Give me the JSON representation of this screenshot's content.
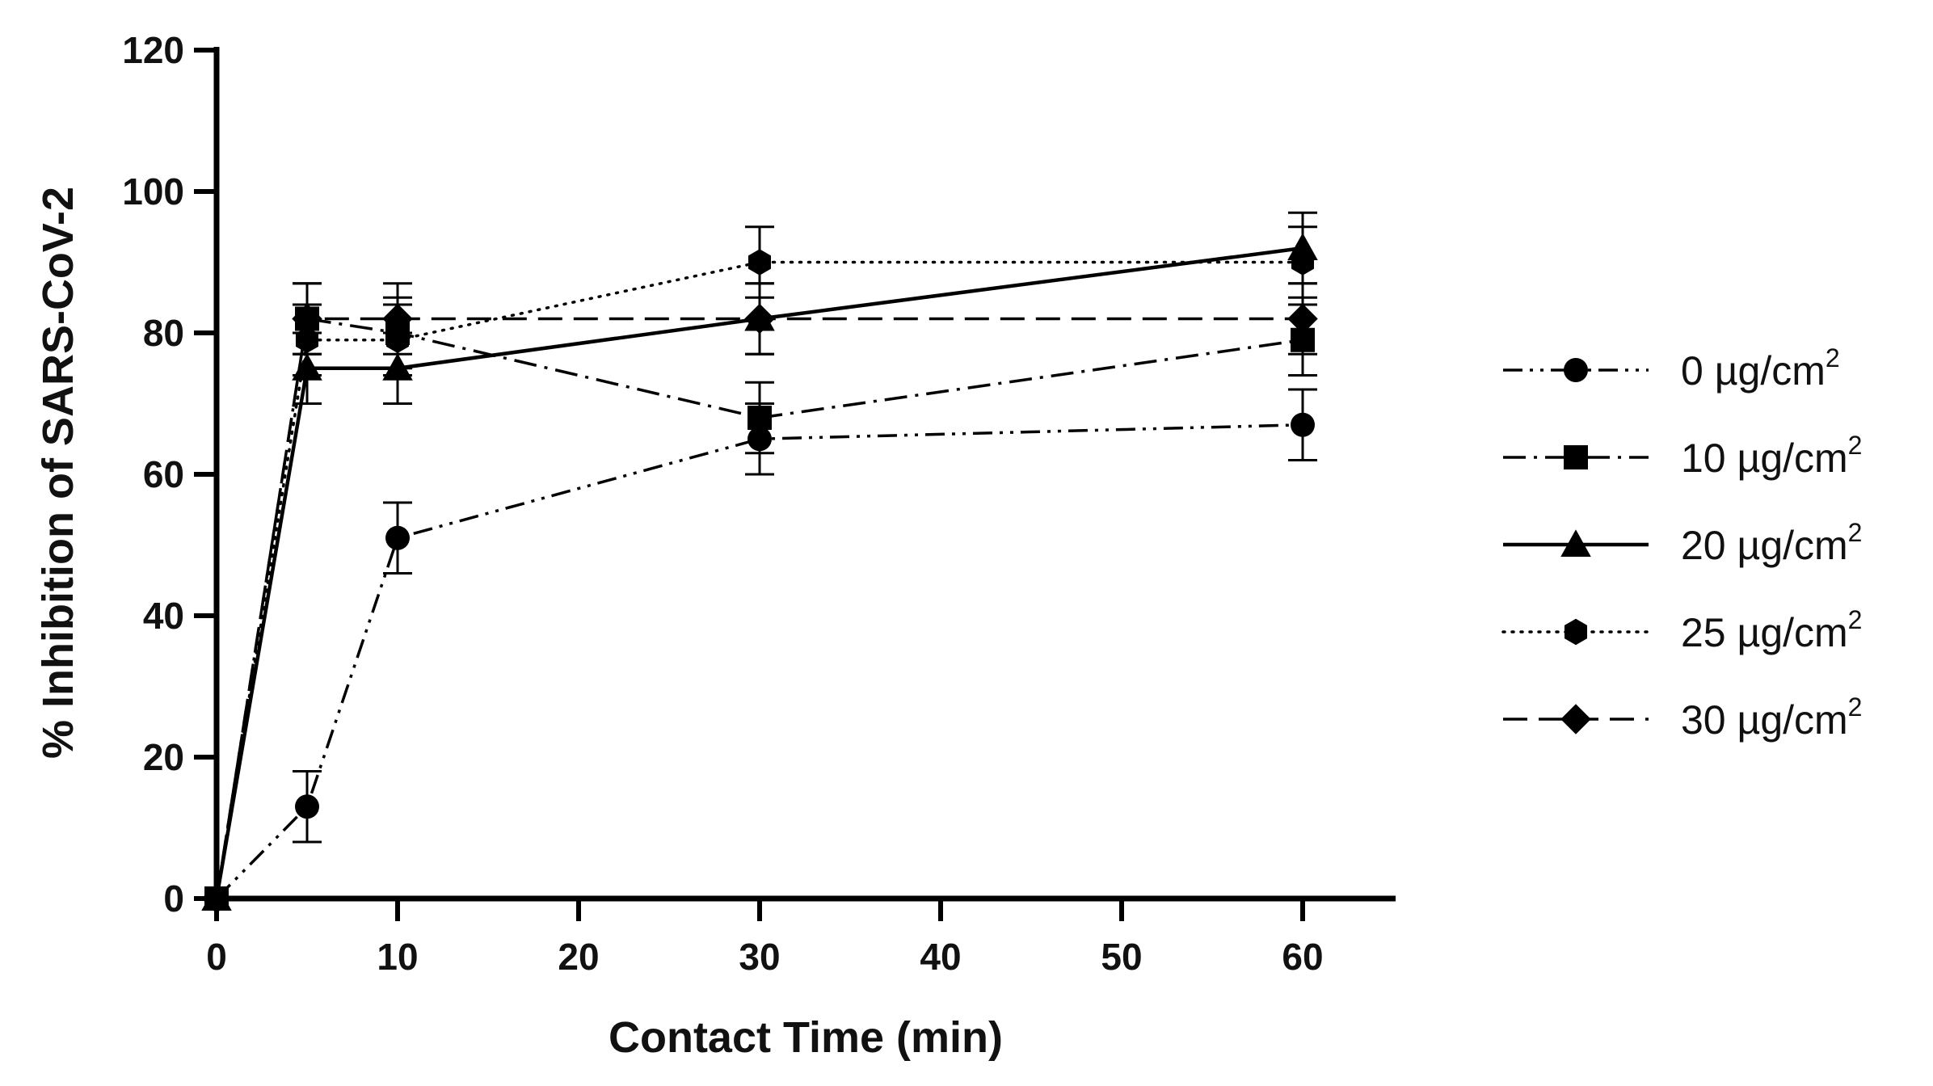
{
  "chart_data": {
    "type": "line",
    "title": "",
    "xlabel": "Contact Time (min)",
    "ylabel": "% Inhibition of SARS-CoV-2",
    "xlim": [
      0,
      65
    ],
    "ylim": [
      0,
      120
    ],
    "xticks": [
      0,
      10,
      20,
      30,
      40,
      50,
      60
    ],
    "yticks": [
      0,
      20,
      40,
      60,
      80,
      100,
      120
    ],
    "grid": false,
    "legend_position": "right",
    "x": [
      0,
      5,
      10,
      30,
      60
    ],
    "series": [
      {
        "name": "0 µg/cm",
        "unit_sup": "2",
        "marker": "circle",
        "dash": "dash-dot-dot",
        "values": [
          0,
          13,
          51,
          65,
          67
        ],
        "errors": [
          0,
          5,
          5,
          5,
          5
        ]
      },
      {
        "name": "10 µg/cm",
        "unit_sup": "2",
        "marker": "square",
        "dash": "dash-dot",
        "values": [
          0,
          82,
          80,
          68,
          79
        ],
        "errors": [
          0,
          5,
          5,
          5,
          5
        ]
      },
      {
        "name": "20 µg/cm",
        "unit_sup": "2",
        "marker": "triangle",
        "dash": "solid",
        "values": [
          0,
          75,
          75,
          82,
          92
        ],
        "errors": [
          0,
          5,
          5,
          5,
          5
        ]
      },
      {
        "name": "25 µg/cm",
        "unit_sup": "2",
        "marker": "hexagon",
        "dash": "dotted",
        "values": [
          0,
          79,
          79,
          90,
          90
        ],
        "errors": [
          0,
          5,
          5,
          5,
          5
        ]
      },
      {
        "name": "30 µg/cm",
        "unit_sup": "2",
        "marker": "diamond",
        "dash": "dashed",
        "values": [
          0,
          82,
          82,
          82,
          82
        ],
        "errors": [
          0,
          5,
          5,
          5,
          5
        ]
      }
    ]
  }
}
